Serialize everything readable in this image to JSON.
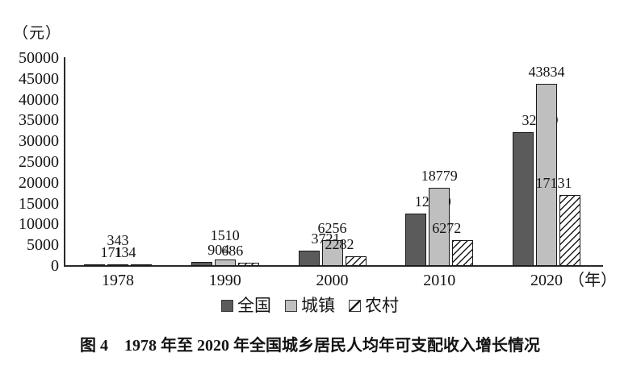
{
  "chart_data": {
    "type": "bar",
    "title": "",
    "y_axis_unit": "（元）",
    "x_axis_unit": "（年）",
    "categories": [
      "1978",
      "1990",
      "2000",
      "2010",
      "2020"
    ],
    "series": [
      {
        "name": "全国",
        "pattern": "solid",
        "color": "#5b5b5b",
        "values": [
          171,
          904,
          3721,
          12520,
          32189
        ]
      },
      {
        "name": "城镇",
        "pattern": "solid",
        "color": "#bfbfbf",
        "values": [
          343,
          1510,
          6256,
          18779,
          43834
        ]
      },
      {
        "name": "农村",
        "pattern": "diagonal-hatch",
        "color": "#ffffff",
        "values": [
          134,
          686,
          2282,
          6272,
          17131
        ]
      }
    ],
    "ylim": [
      0,
      50000
    ],
    "y_ticks": [
      0,
      5000,
      10000,
      15000,
      20000,
      25000,
      30000,
      35000,
      40000,
      45000,
      50000
    ],
    "grid": false,
    "legend_position": "bottom"
  },
  "caption": "图 4　1978 年至 2020 年全国城乡居民人均年可支配收入增长情况",
  "colors": {
    "axis": "#2a2a2a",
    "text": "#141414",
    "bar_national": "#5b5b5b",
    "bar_urban": "#bfbfbf",
    "bar_rural_hatch": "#1a1a1a"
  }
}
